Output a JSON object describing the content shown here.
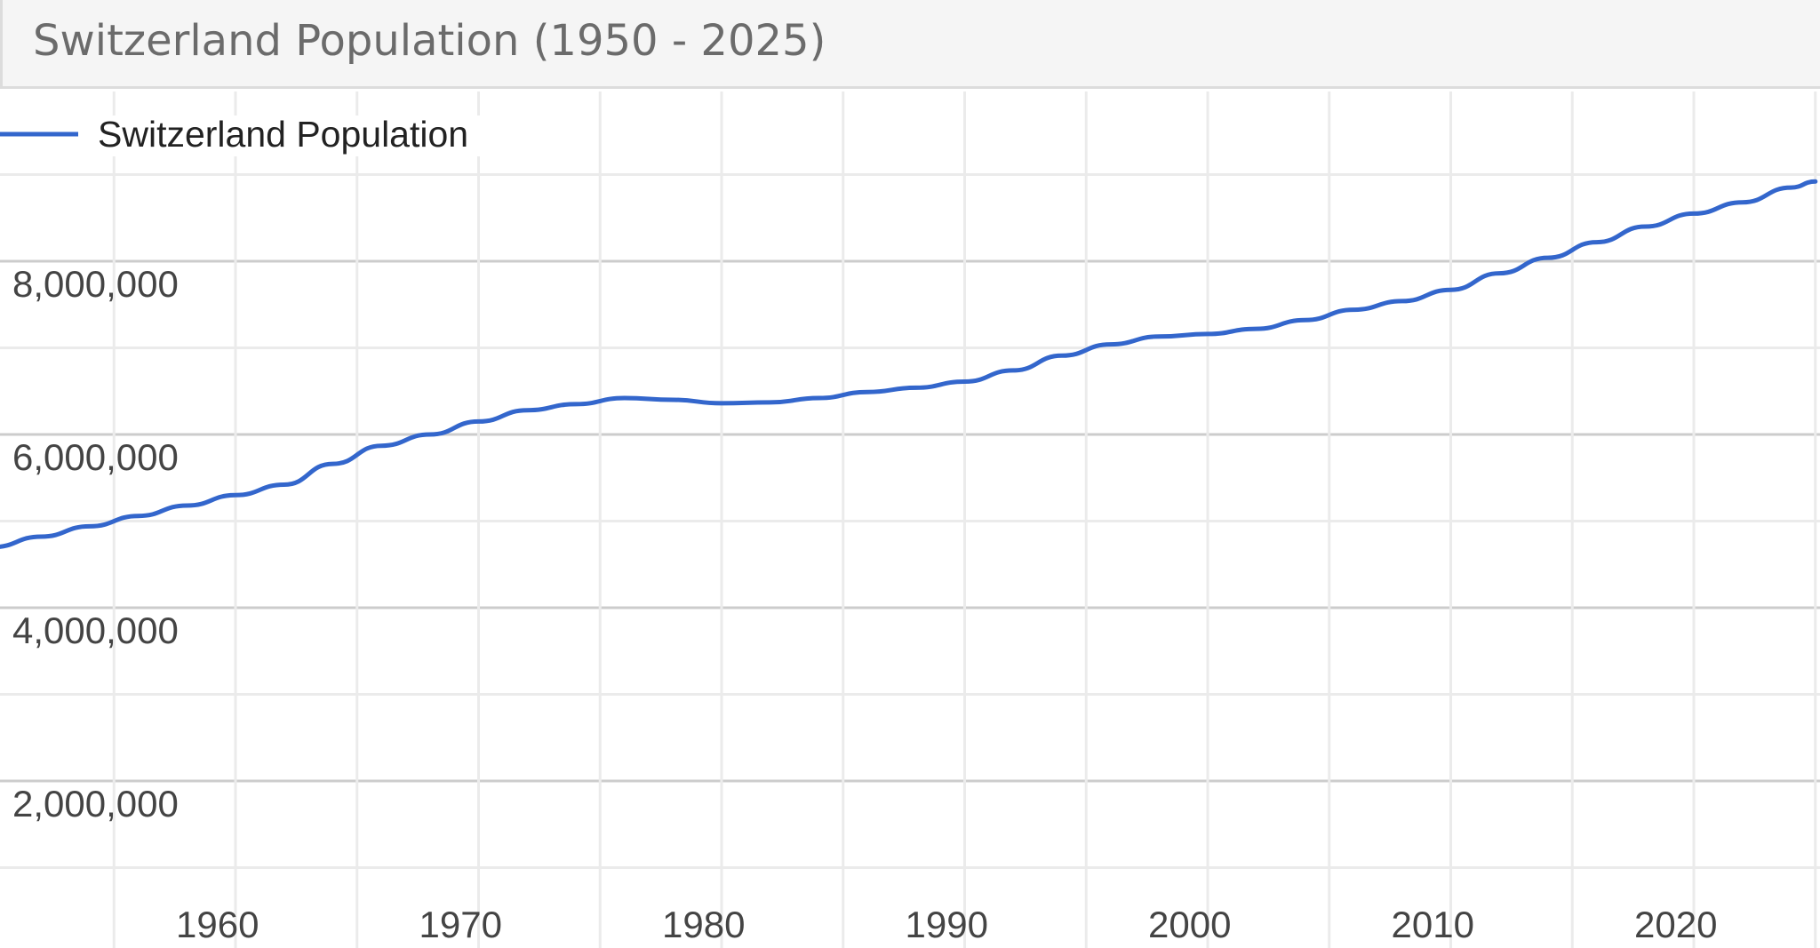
{
  "header": {
    "title": "Switzerland Population (1950 - 2025)"
  },
  "colors": {
    "line": "#3366cc",
    "major_grid": "#cccccc",
    "minor_grid": "#ebebeb",
    "title_bg": "#f5f5f5"
  },
  "chart_data": {
    "type": "line",
    "title": "Switzerland Population (1950 - 2025)",
    "xlabel": "",
    "ylabel": "",
    "xlim": [
      1950,
      2025
    ],
    "ylim": [
      0,
      11000000
    ],
    "grid": true,
    "legend": "top-left",
    "x_ticks": [
      1960,
      1970,
      1980,
      1990,
      2000,
      2010,
      2020
    ],
    "x_tick_labels": [
      "1960",
      "1970",
      "1980",
      "1990",
      "2000",
      "2010",
      "2020"
    ],
    "y_ticks": [
      2000000,
      4000000,
      6000000,
      8000000
    ],
    "y_tick_labels": [
      "2,000,000",
      "4,000,000",
      "6,000,000",
      "8,000,000"
    ],
    "series": [
      {
        "name": "Switzerland Population",
        "color": "#3366cc",
        "x": [
          1950,
          1952,
          1954,
          1956,
          1958,
          1960,
          1962,
          1964,
          1966,
          1968,
          1970,
          1972,
          1974,
          1976,
          1978,
          1980,
          1982,
          1984,
          1986,
          1988,
          1990,
          1992,
          1994,
          1996,
          1998,
          2000,
          2002,
          2004,
          2006,
          2008,
          2010,
          2012,
          2014,
          2016,
          2018,
          2020,
          2022,
          2024,
          2025
        ],
        "values": [
          4700000,
          4820000,
          4940000,
          5060000,
          5180000,
          5300000,
          5420000,
          5660000,
          5870000,
          6000000,
          6150000,
          6280000,
          6350000,
          6420000,
          6400000,
          6360000,
          6370000,
          6420000,
          6490000,
          6540000,
          6610000,
          6740000,
          6910000,
          7040000,
          7130000,
          7160000,
          7220000,
          7320000,
          7440000,
          7540000,
          7670000,
          7860000,
          8040000,
          8220000,
          8400000,
          8550000,
          8680000,
          8850000,
          8920000
        ]
      }
    ]
  }
}
